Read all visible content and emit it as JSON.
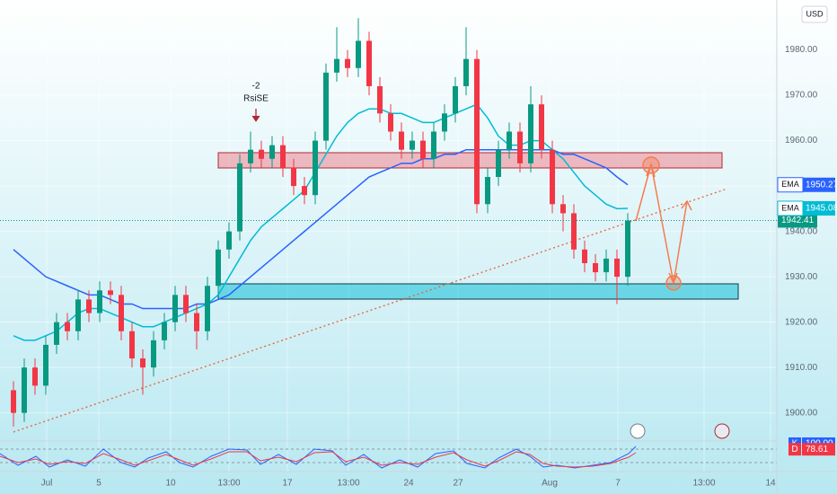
{
  "chart_data": {
    "type": "candlestick",
    "currency": "USD",
    "x_labels": [
      "Jul",
      "5",
      "10",
      "13:00",
      "17",
      "13:00",
      "24",
      "27",
      "Aug",
      "7",
      "13:00",
      "14"
    ],
    "open": [
      1905,
      1900,
      1910,
      1906,
      1915,
      1920,
      1918,
      1925,
      1922,
      1927,
      1926,
      1918,
      1912,
      1910,
      1916,
      1920,
      1926,
      1922,
      1918,
      1928,
      1936,
      1940,
      1955,
      1958,
      1956,
      1959,
      1954,
      1950,
      1948,
      1960,
      1975,
      1978,
      1976,
      1982,
      1972,
      1966,
      1962,
      1958,
      1960,
      1956,
      1962,
      1966,
      1972,
      1978,
      1946,
      1952,
      1958,
      1962,
      1955,
      1968,
      1958,
      1946,
      1944,
      1936,
      1933,
      1931,
      1934,
      1930
    ],
    "high": [
      1907,
      1912,
      1912,
      1917,
      1922,
      1922,
      1927,
      1927,
      1929,
      1929,
      1928,
      1920,
      1914,
      1918,
      1922,
      1928,
      1928,
      1924,
      1930,
      1938,
      1942,
      1957,
      1962,
      1960,
      1961,
      1961,
      1956,
      1952,
      1962,
      1977,
      1985,
      1980,
      1987,
      1984,
      1974,
      1968,
      1964,
      1962,
      1962,
      1964,
      1968,
      1974,
      1985,
      1980,
      1954,
      1960,
      1964,
      1964,
      1972,
      1970,
      1960,
      1948,
      1946,
      1938,
      1935,
      1936,
      1936,
      1944
    ],
    "low": [
      1897,
      1898,
      1904,
      1904,
      1913,
      1916,
      1916,
      1920,
      1920,
      1924,
      1916,
      1910,
      1904,
      1908,
      1914,
      1918,
      1920,
      1914,
      1916,
      1926,
      1934,
      1938,
      1953,
      1954,
      1954,
      1952,
      1948,
      1946,
      1946,
      1958,
      1973,
      1974,
      1974,
      1970,
      1964,
      1960,
      1956,
      1956,
      1954,
      1954,
      1960,
      1964,
      1970,
      1944,
      1944,
      1950,
      1956,
      1953,
      1953,
      1956,
      1944,
      1940,
      1934,
      1931,
      1929,
      1929,
      1924,
      1928
    ],
    "close": [
      1900,
      1910,
      1906,
      1915,
      1920,
      1918,
      1925,
      1922,
      1927,
      1926,
      1918,
      1912,
      1910,
      1916,
      1920,
      1926,
      1922,
      1918,
      1928,
      1936,
      1940,
      1955,
      1958,
      1956,
      1959,
      1954,
      1950,
      1948,
      1960,
      1975,
      1978,
      1976,
      1982,
      1972,
      1966,
      1962,
      1958,
      1960,
      1956,
      1962,
      1966,
      1972,
      1978,
      1946,
      1952,
      1958,
      1962,
      1955,
      1968,
      1958,
      1946,
      1944,
      1936,
      1933,
      1931,
      1934,
      1930,
      1942.41
    ],
    "up_color": "#089981",
    "down_color": "#f23645",
    "series": [
      {
        "name": "EMA",
        "color": "#2962ff",
        "values": [
          1936,
          1934,
          1932,
          1930,
          1929,
          1928,
          1927,
          1926,
          1926,
          1925,
          1924,
          1924,
          1923,
          1923,
          1923,
          1923,
          1923,
          1924,
          1924,
          1925,
          1926,
          1928,
          1930,
          1932,
          1934,
          1936,
          1938,
          1940,
          1942,
          1944,
          1946,
          1948,
          1950,
          1952,
          1953,
          1954,
          1955,
          1955,
          1956,
          1956,
          1957,
          1957,
          1958,
          1958,
          1958,
          1958,
          1958,
          1958,
          1958,
          1958,
          1958,
          1957,
          1957,
          1956,
          1955,
          1954,
          1952,
          1950.27
        ]
      },
      {
        "name": "EMA",
        "color": "#00bcd4",
        "values": [
          1917,
          1916,
          1916,
          1917,
          1918,
          1920,
          1922,
          1923,
          1923,
          1922,
          1921,
          1920,
          1919,
          1919,
          1920,
          1921,
          1922,
          1923,
          1924,
          1926,
          1930,
          1934,
          1938,
          1941,
          1943,
          1945,
          1947,
          1949,
          1953,
          1957,
          1961,
          1964,
          1966,
          1967,
          1967,
          1966,
          1966,
          1965,
          1964,
          1964,
          1965,
          1966,
          1967,
          1968,
          1965,
          1961,
          1959,
          1959,
          1960,
          1960,
          1958,
          1956,
          1953,
          1950,
          1948,
          1946,
          1945,
          1945.08
        ]
      }
    ],
    "ylim": [
      1894,
      1991
    ],
    "yticks": [
      {
        "value": 1900,
        "label": "1900.00"
      },
      {
        "value": 1910,
        "label": "1910.00"
      },
      {
        "value": 1920,
        "label": "1920.00"
      },
      {
        "value": 1930,
        "label": "1930.00"
      },
      {
        "value": 1940,
        "label": "1940.00"
      },
      {
        "value": 1950,
        "label": "1950.00"
      },
      {
        "value": 1960,
        "label": "1960.00"
      },
      {
        "value": 1970,
        "label": "1970.00"
      },
      {
        "value": 1980,
        "label": "1980.00"
      }
    ],
    "grid": true,
    "signal": {
      "value": -2,
      "name": "RsiSE"
    },
    "stochastic": {
      "ylim": [
        0,
        100
      ],
      "k": {
        "name": "K",
        "value": 100,
        "value_label": "100.00",
        "color": "#2962ff"
      },
      "d": {
        "name": "D",
        "value": 78.61,
        "color": "#f23645"
      }
    }
  }
}
